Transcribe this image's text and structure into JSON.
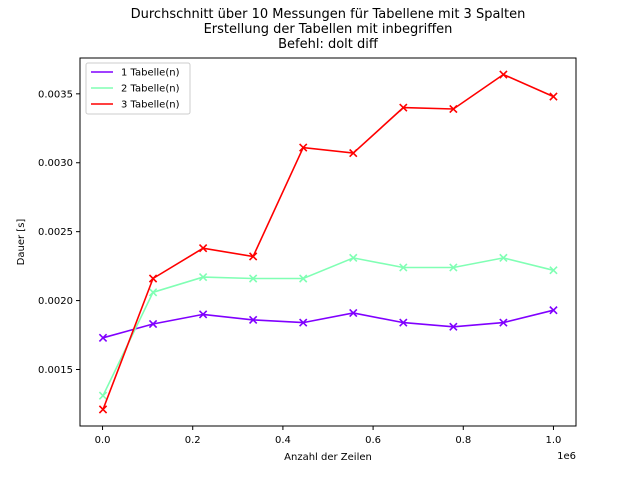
{
  "chart_data": {
    "type": "line",
    "title_lines": [
      "Durchschnitt über 10 Messungen für Tabellene mit 3 Spalten",
      "Erstellung der Tabellen mit inbegriffen",
      "Befehl: dolt diff"
    ],
    "xlabel": "Anzahl der Zeilen",
    "ylabel": "Dauer [s]",
    "x_offset_label": "1e6",
    "x_ticks": [
      "0.0",
      "0.2",
      "0.4",
      "0.6",
      "0.8",
      "1.0"
    ],
    "y_ticks": [
      "0.0015",
      "0.0020",
      "0.0025",
      "0.0030",
      "0.0035"
    ],
    "xlim": [
      -50000,
      1050000
    ],
    "ylim": [
      0.00109,
      0.00376
    ],
    "grid": false,
    "legend_position": "upper left",
    "x": [
      1000,
      112000,
      223000,
      334000,
      445000,
      556000,
      667000,
      778000,
      889000,
      1000000
    ],
    "series": [
      {
        "name": "1 Tabelle(n)",
        "color": "#8000ff",
        "values": [
          0.00173,
          0.00183,
          0.0019,
          0.00186,
          0.00184,
          0.00191,
          0.00184,
          0.00181,
          0.00184,
          0.00193
        ]
      },
      {
        "name": "2 Tabelle(n)",
        "color": "#80ffb4",
        "values": [
          0.00131,
          0.00206,
          0.00217,
          0.00216,
          0.00216,
          0.00231,
          0.00224,
          0.00224,
          0.00231,
          0.00222
        ]
      },
      {
        "name": "3 Tabelle(n)",
        "color": "#ff0000",
        "values": [
          0.00121,
          0.00216,
          0.00238,
          0.00232,
          0.00311,
          0.00307,
          0.0034,
          0.00339,
          0.00364,
          0.00348
        ]
      }
    ]
  }
}
